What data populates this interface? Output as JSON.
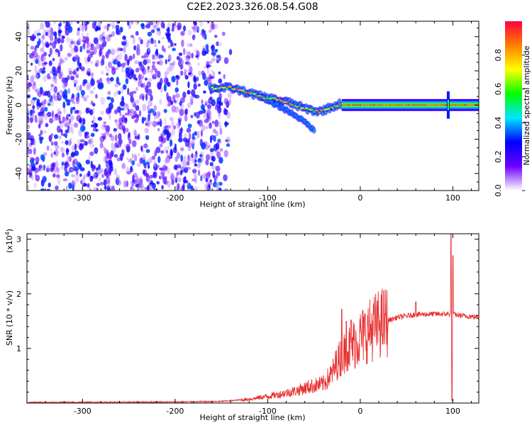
{
  "title": "C2E2.2023.326.08.54.G08",
  "chart_data": [
    {
      "type": "heatmap",
      "xlabel": "Height of straight line (km)",
      "ylabel": "Frequency (Hz)",
      "xlim": [
        -360,
        128
      ],
      "ylim": [
        -50,
        49
      ],
      "x_ticks": [
        -300,
        -200,
        -100,
        0,
        100
      ],
      "y_ticks": [
        -40,
        -20,
        0,
        20,
        40
      ],
      "colorbar": {
        "label": "Normalized spectral amplitude",
        "range": [
          0,
          1
        ],
        "ticks": [
          "0.0",
          "0.2",
          "0.4",
          "0.6",
          "0.8"
        ],
        "colors": [
          "#ffffff",
          "#6d00ff",
          "#0000ff",
          "#00e5ff",
          "#00ff00",
          "#ffff00",
          "#ff8000",
          "#ff0040"
        ]
      },
      "features": {
        "noise_region": {
          "x_start": -360,
          "x_end": -140,
          "freq_range": [
            -50,
            49
          ],
          "amplitude_range": [
            0.05,
            0.35
          ]
        },
        "main_trace": [
          [
            -162,
            10
          ],
          [
            -140,
            10
          ],
          [
            -120,
            7
          ],
          [
            -100,
            4
          ],
          [
            -80,
            2
          ],
          [
            -60,
            -2
          ],
          [
            -45,
            -4
          ],
          [
            -30,
            -1
          ],
          [
            -20,
            1
          ],
          [
            -10,
            0
          ],
          [
            0,
            0
          ],
          [
            128,
            0
          ]
        ],
        "lower_branch": [
          [
            -110,
            5
          ],
          [
            -90,
            0
          ],
          [
            -70,
            -6
          ],
          [
            -55,
            -12
          ],
          [
            -50,
            -15
          ]
        ],
        "spike_x": 95
      }
    },
    {
      "type": "line",
      "xlabel": "Height of straight line (km)",
      "ylabel": "SNR (10 * v/v)",
      "y_exponent_label": "(x10",
      "y_exponent": "4",
      "y_exponent_close": ")",
      "xlim": [
        -360,
        128
      ],
      "ylim": [
        0,
        3.1
      ],
      "x_ticks": [
        -300,
        -200,
        -100,
        0,
        100
      ],
      "y_ticks": [
        1,
        2,
        3
      ],
      "color": "#e83030",
      "envelope": [
        [
          -360,
          0.01
        ],
        [
          -200,
          0.02
        ],
        [
          -150,
          0.03
        ],
        [
          -120,
          0.07
        ],
        [
          -90,
          0.15
        ],
        [
          -70,
          0.22
        ],
        [
          -55,
          0.3
        ],
        [
          -40,
          0.35
        ],
        [
          -30,
          0.55
        ],
        [
          -25,
          0.75
        ],
        [
          -15,
          0.95
        ],
        [
          0,
          1.2
        ],
        [
          20,
          1.45
        ],
        [
          40,
          1.57
        ],
        [
          60,
          1.62
        ],
        [
          80,
          1.63
        ],
        [
          95,
          1.63
        ],
        [
          110,
          1.6
        ],
        [
          128,
          1.57
        ]
      ],
      "spikes": [
        [
          -20,
          1.72
        ],
        [
          -15,
          1.5
        ],
        [
          -10,
          1.52
        ],
        [
          20,
          1.6
        ],
        [
          60,
          1.85
        ],
        [
          98,
          3.1
        ],
        [
          99,
          0.04
        ],
        [
          100,
          2.7
        ]
      ]
    }
  ]
}
